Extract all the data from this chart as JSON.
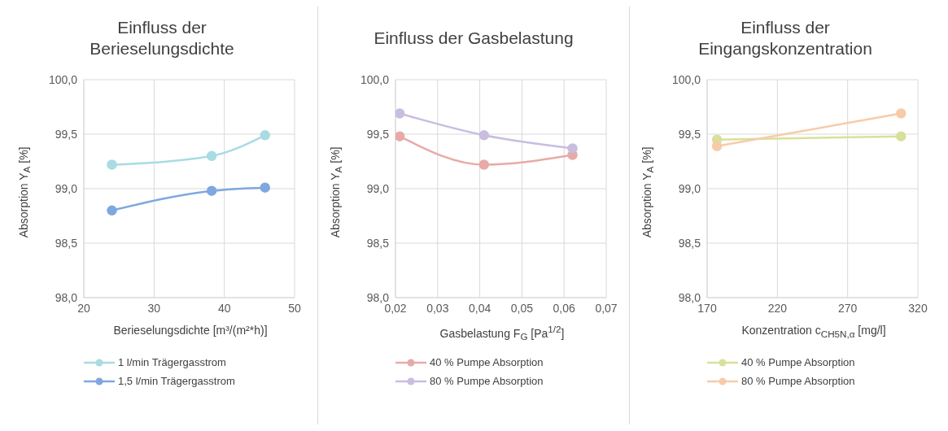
{
  "chart_data": [
    {
      "type": "line",
      "title": "Einfluss der Berieselungsdichte",
      "xlabel": "Berieselungsdichte [m³/(m²*h)]",
      "ylabel": "Absorption Y$_{A}$ [%]",
      "x": [
        24,
        38.2,
        45.8
      ],
      "series": [
        {
          "name": "1 l/min Trägergasstrom",
          "color": "#a9dbe3",
          "values": [
            99.22,
            99.3,
            99.49
          ]
        },
        {
          "name": "1,5 l/min Trägergasstrom",
          "color": "#7fa7e0",
          "values": [
            98.8,
            98.98,
            99.01
          ]
        }
      ],
      "xlim": [
        20,
        50
      ],
      "xticks": [
        20,
        30,
        40,
        50
      ],
      "ylim": [
        98,
        100
      ],
      "yticks": [
        {
          "value": 98,
          "label": "98,0"
        },
        {
          "value": 98.5,
          "label": "98,5"
        },
        {
          "value": 99,
          "label": "99,0"
        },
        {
          "value": 99.5,
          "label": "99,5"
        },
        {
          "value": 100,
          "label": "100,0"
        }
      ],
      "grid": true,
      "legend": "bottom",
      "marker": "circle",
      "line_style": "solid"
    },
    {
      "type": "line",
      "title": "Einfluss der Gasbelastung",
      "xlabel": "Gasbelastung F$_{G}$ [Pa$^{1/2}$]",
      "ylabel": "Absorption Y$_{A}$ [%]",
      "x": [
        0.021,
        0.041,
        0.062
      ],
      "series": [
        {
          "name": "40 % Pumpe Absorption",
          "color": "#e8aaa8",
          "values": [
            99.48,
            99.22,
            99.31
          ]
        },
        {
          "name": "80 % Pumpe Absorption",
          "color": "#c9bde0",
          "values": [
            99.69,
            99.49,
            99.37
          ]
        }
      ],
      "xlim": [
        0.02,
        0.07
      ],
      "xticks": [
        {
          "value": 0.02,
          "label": "0,02"
        },
        {
          "value": 0.03,
          "label": "0,03"
        },
        {
          "value": 0.04,
          "label": "0,04"
        },
        {
          "value": 0.05,
          "label": "0,05"
        },
        {
          "value": 0.06,
          "label": "0,06"
        },
        {
          "value": 0.07,
          "label": "0,07"
        }
      ],
      "ylim": [
        98,
        100
      ],
      "yticks": [
        {
          "value": 98,
          "label": "98,0"
        },
        {
          "value": 98.5,
          "label": "98,5"
        },
        {
          "value": 99,
          "label": "99,0"
        },
        {
          "value": 99.5,
          "label": "99,5"
        },
        {
          "value": 100,
          "label": "100,0"
        }
      ],
      "grid": true,
      "legend": "bottom",
      "marker": "circle",
      "line_style": "solid"
    },
    {
      "type": "line",
      "title": "Einfluss der Eingangskonzentration",
      "xlabel": "Konzentration c$_{CH5N,α}$ [mg/l]",
      "ylabel": "Absorption Y$_{A}$ [%]",
      "x": [
        177,
        308
      ],
      "series": [
        {
          "name": "40 % Pumpe Absorption",
          "color": "#d9e09a",
          "values": [
            99.45,
            99.48
          ]
        },
        {
          "name": "80 % Pumpe Absorption",
          "color": "#f8cba8",
          "values": [
            99.39,
            99.69
          ]
        }
      ],
      "xlim": [
        170,
        320
      ],
      "xticks": [
        170,
        220,
        270,
        320
      ],
      "ylim": [
        98,
        100
      ],
      "yticks": [
        {
          "value": 98,
          "label": "98,0"
        },
        {
          "value": 98.5,
          "label": "98,5"
        },
        {
          "value": 99,
          "label": "99,0"
        },
        {
          "value": 99.5,
          "label": "99,5"
        },
        {
          "value": 100,
          "label": "100,0"
        }
      ],
      "grid": true,
      "legend": "bottom",
      "marker": "circle",
      "line_style": "solid"
    }
  ]
}
